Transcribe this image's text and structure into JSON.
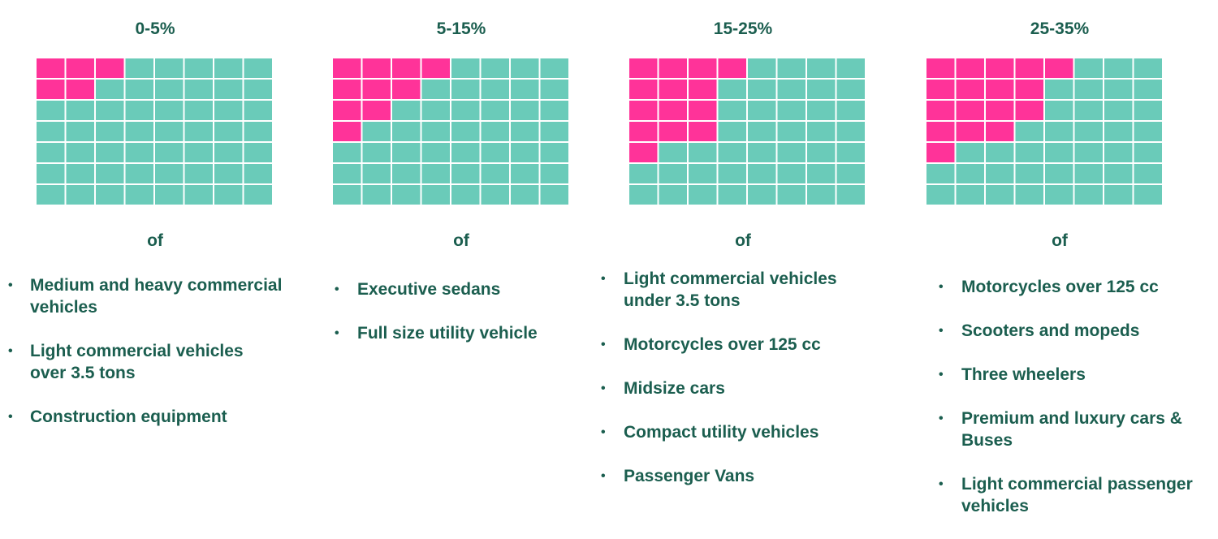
{
  "colors": {
    "highlight": "#ff3399",
    "base": "#6acbb9",
    "text": "#1b5e4f"
  },
  "grid": {
    "rows": 7,
    "cols": 8
  },
  "chart_data": {
    "type": "waffle",
    "panels": [
      {
        "title": "0-5%",
        "connector": "of",
        "filled_per_row": [
          3,
          2,
          0,
          0,
          0,
          0,
          0
        ],
        "items": [
          "Medium and heavy commercial vehicles",
          "Light commercial vehicles over 3.5 tons",
          "Construction equipment"
        ]
      },
      {
        "title": "5-15%",
        "connector": "of",
        "filled_per_row": [
          4,
          3,
          2,
          1,
          0,
          0,
          0
        ],
        "items": [
          "Executive sedans",
          "Full size utility vehicle"
        ]
      },
      {
        "title": "15-25%",
        "connector": "of",
        "filled_per_row": [
          4,
          3,
          3,
          3,
          1,
          0,
          0
        ],
        "items": [
          "Light commercial vehicles under 3.5 tons",
          "Motorcycles over 125 cc",
          "Midsize cars",
          "Compact utility vehicles",
          "Passenger Vans"
        ]
      },
      {
        "title": "25-35%",
        "connector": "of",
        "filled_per_row": [
          5,
          4,
          4,
          3,
          1,
          0,
          0
        ],
        "items": [
          "Motorcycles over 125 cc",
          "Scooters and mopeds",
          "Three wheelers",
          "Premium and luxury cars & Buses",
          "Light commercial passenger vehicles"
        ]
      }
    ]
  }
}
